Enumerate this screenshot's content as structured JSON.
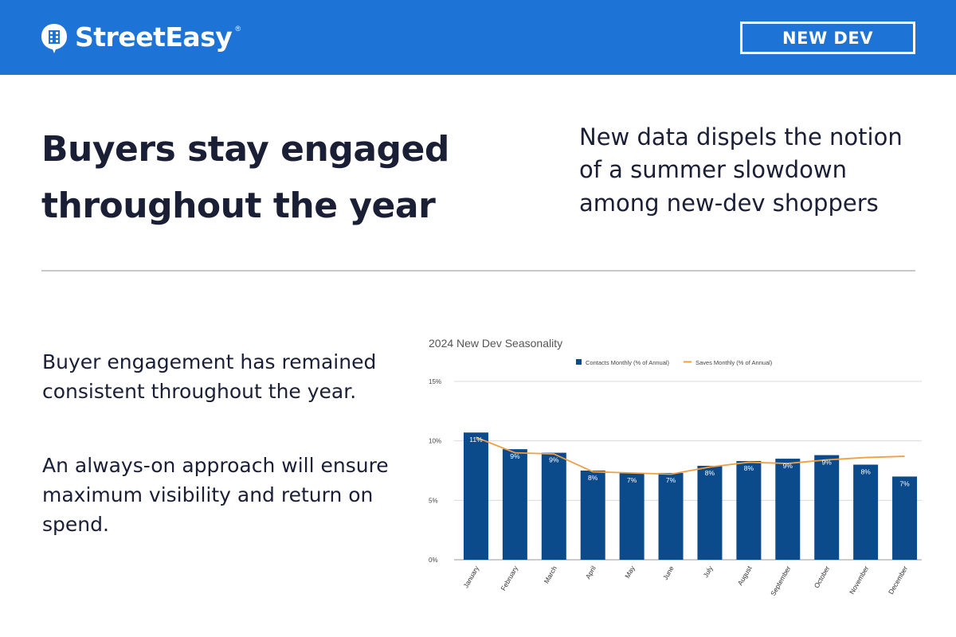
{
  "header": {
    "brand": "StreetEasy",
    "brand_mark": "®",
    "badge": "NEW DEV",
    "logo_icon": "building-icon"
  },
  "headline": {
    "line1": "Buyers stay engaged",
    "line2": "throughout the year"
  },
  "subhead": {
    "line1": "New data dispels the notion",
    "line2": "of a summer slowdown",
    "line3": "among new-dev shoppers"
  },
  "body": {
    "paragraph1": "Buyer engagement has remained consistent throughout the year.",
    "paragraph2": "An always-on approach will ensure maximum visibility and return on spend."
  },
  "colors": {
    "header_bg": "#1e74d6",
    "bar": "#0b4a8b",
    "line": "#f0a040",
    "text": "#1a1f36"
  },
  "chart_data": {
    "type": "bar",
    "title": "2024 New Dev Seasonality",
    "categories": [
      "January",
      "February",
      "March",
      "April",
      "May",
      "June",
      "July",
      "August",
      "September",
      "October",
      "November",
      "December"
    ],
    "series": [
      {
        "name": "Contacts Monthly (% of Annual)",
        "type": "bar",
        "values": [
          10.7,
          9.3,
          9.0,
          7.5,
          7.3,
          7.3,
          7.9,
          8.3,
          8.5,
          8.8,
          8.0,
          7.0
        ],
        "labels": [
          "11%",
          "9%",
          "9%",
          "8%",
          "7%",
          "7%",
          "8%",
          "8%",
          "9%",
          "9%",
          "8%",
          "7%"
        ]
      },
      {
        "name": "Saves Monthly (% of Annual)",
        "type": "line",
        "values": [
          10.3,
          9.0,
          8.9,
          7.4,
          7.3,
          7.2,
          7.8,
          8.2,
          8.1,
          8.4,
          8.6,
          8.7
        ]
      }
    ],
    "yticks": [
      "0%",
      "5%",
      "10%",
      "15%"
    ],
    "ylim": [
      0,
      15
    ],
    "xlabel": "",
    "ylabel": "",
    "legend": "top"
  }
}
